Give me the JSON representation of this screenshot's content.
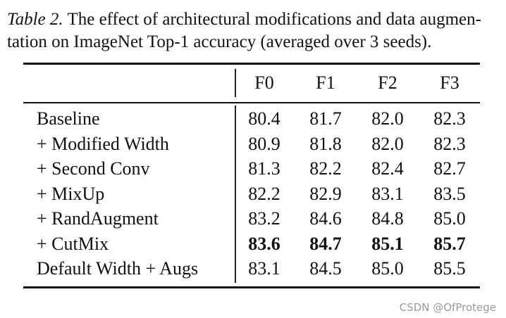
{
  "caption": {
    "label": "Table 2.",
    "line1": "The effect of architectural modifications and data augmen-",
    "line2": "tation on ImageNet Top-1 accuracy (averaged over 3 seeds)."
  },
  "table": {
    "columns": [
      "F0",
      "F1",
      "F2",
      "F3"
    ],
    "rows": [
      {
        "label": "Baseline",
        "values": [
          "80.4",
          "81.7",
          "82.0",
          "82.3"
        ],
        "bold": false
      },
      {
        "label": "+ Modified Width",
        "values": [
          "80.9",
          "81.8",
          "82.0",
          "82.3"
        ],
        "bold": false
      },
      {
        "label": "+ Second Conv",
        "values": [
          "81.3",
          "82.2",
          "82.4",
          "82.7"
        ],
        "bold": false
      },
      {
        "label": "+ MixUp",
        "values": [
          "82.2",
          "82.9",
          "83.1",
          "83.5"
        ],
        "bold": false
      },
      {
        "label": "+ RandAugment",
        "values": [
          "83.2",
          "84.6",
          "84.8",
          "85.0"
        ],
        "bold": false
      },
      {
        "label": "+ CutMix",
        "values": [
          "83.6",
          "84.7",
          "85.1",
          "85.7"
        ],
        "bold": true
      },
      {
        "label": "Default Width + Augs",
        "values": [
          "83.1",
          "84.5",
          "85.0",
          "85.5"
        ],
        "bold": false
      }
    ]
  },
  "watermark": "CSDN @OfProtege"
}
